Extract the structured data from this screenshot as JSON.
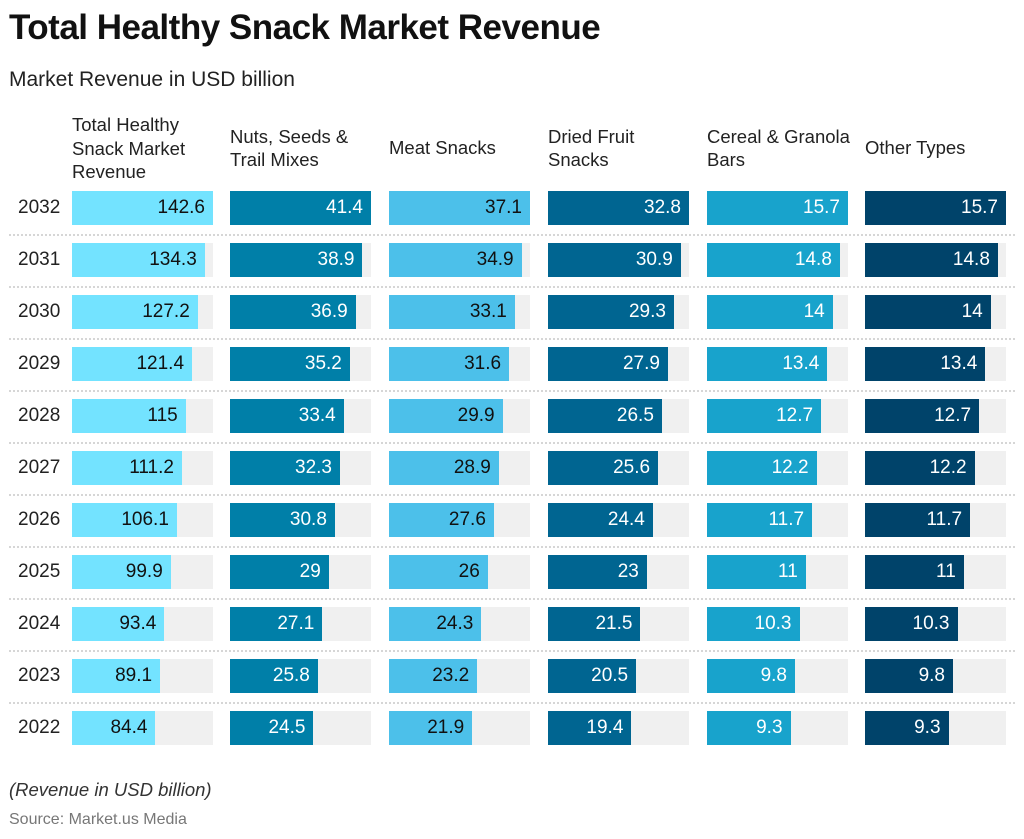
{
  "title": "Total Healthy Snack Market Revenue",
  "subtitle": "Market Revenue in USD billion",
  "note": "(Revenue in USD billion)",
  "source": "Source: Market.us Media",
  "chart_data": {
    "type": "table",
    "categories": [
      "2032",
      "2031",
      "2030",
      "2029",
      "2028",
      "2027",
      "2026",
      "2025",
      "2024",
      "2023",
      "2022"
    ],
    "series": [
      {
        "name": "Total Healthy Snack Market Revenue",
        "color": "#73e3ff",
        "text_color": "#111111",
        "values": [
          142.6,
          134.3,
          127.2,
          121.4,
          115,
          111.2,
          106.1,
          99.9,
          93.4,
          89.1,
          84.4
        ]
      },
      {
        "name": "Nuts, Seeds & Trail Mixes",
        "color": "#007fa8",
        "text_color": "#ffffff",
        "values": [
          41.4,
          38.9,
          36.9,
          35.2,
          33.4,
          32.3,
          30.8,
          29,
          27.1,
          25.8,
          24.5
        ]
      },
      {
        "name": "Meat Snacks",
        "color": "#4cc0ea",
        "text_color": "#111111",
        "values": [
          37.1,
          34.9,
          33.1,
          31.6,
          29.9,
          28.9,
          27.6,
          26,
          24.3,
          23.2,
          21.9
        ]
      },
      {
        "name": "Dried Fruit Snacks",
        "color": "#006591",
        "text_color": "#ffffff",
        "values": [
          32.8,
          30.9,
          29.3,
          27.9,
          26.5,
          25.6,
          24.4,
          23,
          21.5,
          20.5,
          19.4
        ]
      },
      {
        "name": "Cereal & Granola Bars",
        "color": "#18a3cc",
        "text_color": "#ffffff",
        "values": [
          15.7,
          14.8,
          14,
          13.4,
          12.7,
          12.2,
          11.7,
          11,
          10.3,
          9.8,
          9.3
        ]
      },
      {
        "name": "Other Types",
        "color": "#00436a",
        "text_color": "#ffffff",
        "values": [
          15.7,
          14.8,
          14,
          13.4,
          12.7,
          12.2,
          11.7,
          11,
          10.3,
          9.8,
          9.3
        ]
      }
    ]
  }
}
